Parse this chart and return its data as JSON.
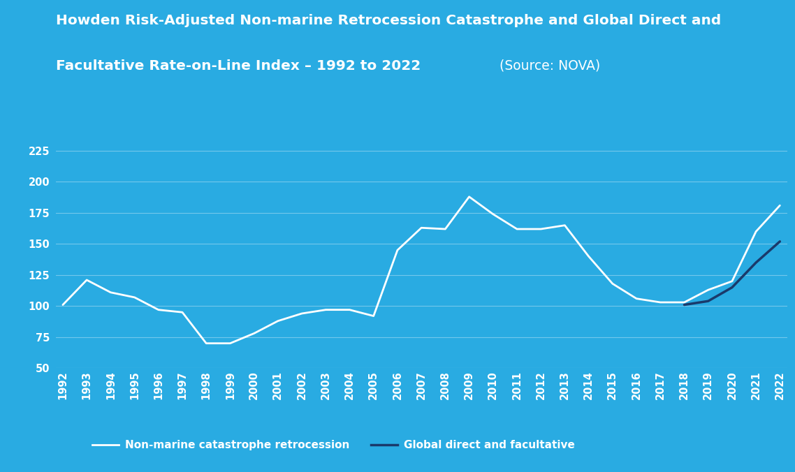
{
  "title_line1": "Howden Risk-Adjusted Non-marine Retrocession Catastrophe and Global Direct and",
  "title_line2_bold": "Facultative Rate-on-Line Index – 1992 to 2022",
  "title_line2_normal": "  (Source: NOVA)",
  "background_color": "#29ABE2",
  "line1_label": "Non-marine catastrophe retrocession",
  "line2_label": "Global direct and facultative",
  "line1_color": "#FFFFFF",
  "line2_color": "#1a3a6b",
  "years": [
    1992,
    1993,
    1994,
    1995,
    1996,
    1997,
    1998,
    1999,
    2000,
    2001,
    2002,
    2003,
    2004,
    2005,
    2006,
    2007,
    2008,
    2009,
    2010,
    2011,
    2012,
    2013,
    2014,
    2015,
    2016,
    2017,
    2018,
    2019,
    2020,
    2021,
    2022
  ],
  "line1_values": [
    101,
    121,
    111,
    107,
    97,
    95,
    70,
    70,
    78,
    88,
    94,
    97,
    97,
    92,
    145,
    163,
    162,
    188,
    174,
    162,
    162,
    165,
    140,
    118,
    106,
    103,
    103,
    113,
    120,
    160,
    181
  ],
  "line2_values": [
    null,
    null,
    null,
    null,
    null,
    null,
    null,
    null,
    null,
    null,
    null,
    null,
    null,
    null,
    null,
    null,
    null,
    null,
    null,
    null,
    null,
    null,
    null,
    null,
    null,
    null,
    101,
    104,
    115,
    135,
    152
  ],
  "ylim_min": 50,
  "ylim_max": 240,
  "yticks": [
    50,
    75,
    100,
    125,
    150,
    175,
    200,
    225
  ],
  "grid_color": "#FFFFFF",
  "grid_alpha": 0.35,
  "text_color": "#FFFFFF",
  "title_fontsize": 14.5,
  "axis_fontsize": 10.5,
  "legend_fontsize": 11,
  "line_width": 2.0
}
